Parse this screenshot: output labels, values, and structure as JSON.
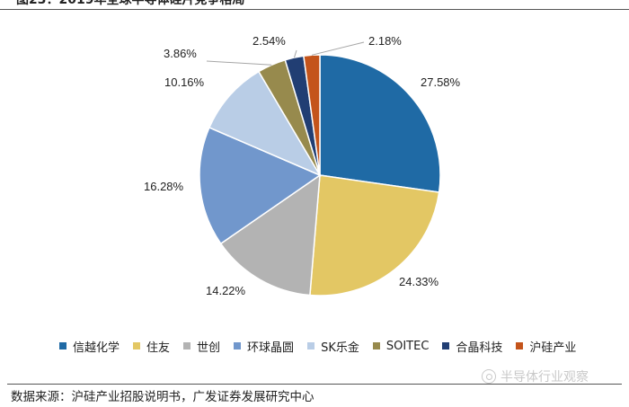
{
  "header": {
    "title": "图23：2019年全球半导体硅片竞争格局"
  },
  "chart_data": {
    "type": "pie",
    "title": "",
    "slices": [
      {
        "label": "信越化学",
        "value": 27.58,
        "value_label": "27.58%",
        "color": "#1f6aa5"
      },
      {
        "label": "住友",
        "value": 24.33,
        "value_label": "24.33%",
        "color": "#e3c764"
      },
      {
        "label": "世创",
        "value": 14.22,
        "value_label": "14.22%",
        "color": "#b3b3b3"
      },
      {
        "label": "环球晶圆",
        "value": 16.28,
        "value_label": "16.28%",
        "color": "#7197cc"
      },
      {
        "label": "SK乐金",
        "value": 10.16,
        "value_label": "10.16%",
        "color": "#b9cde6"
      },
      {
        "label": "SOITEC",
        "value": 3.86,
        "value_label": "3.86%",
        "color": "#978a4d"
      },
      {
        "label": "合晶科技",
        "value": 2.54,
        "value_label": "2.54%",
        "color": "#213e73"
      },
      {
        "label": "沪硅产业",
        "value": 2.18,
        "value_label": "2.18%",
        "color": "#c4541b"
      }
    ],
    "legend_position": "bottom"
  },
  "source": {
    "text": "数据来源：沪硅产业招股说明书，广发证券发展研究中心"
  },
  "watermark": {
    "text": "半导体行业观察",
    "icon": "wechat-icon"
  }
}
